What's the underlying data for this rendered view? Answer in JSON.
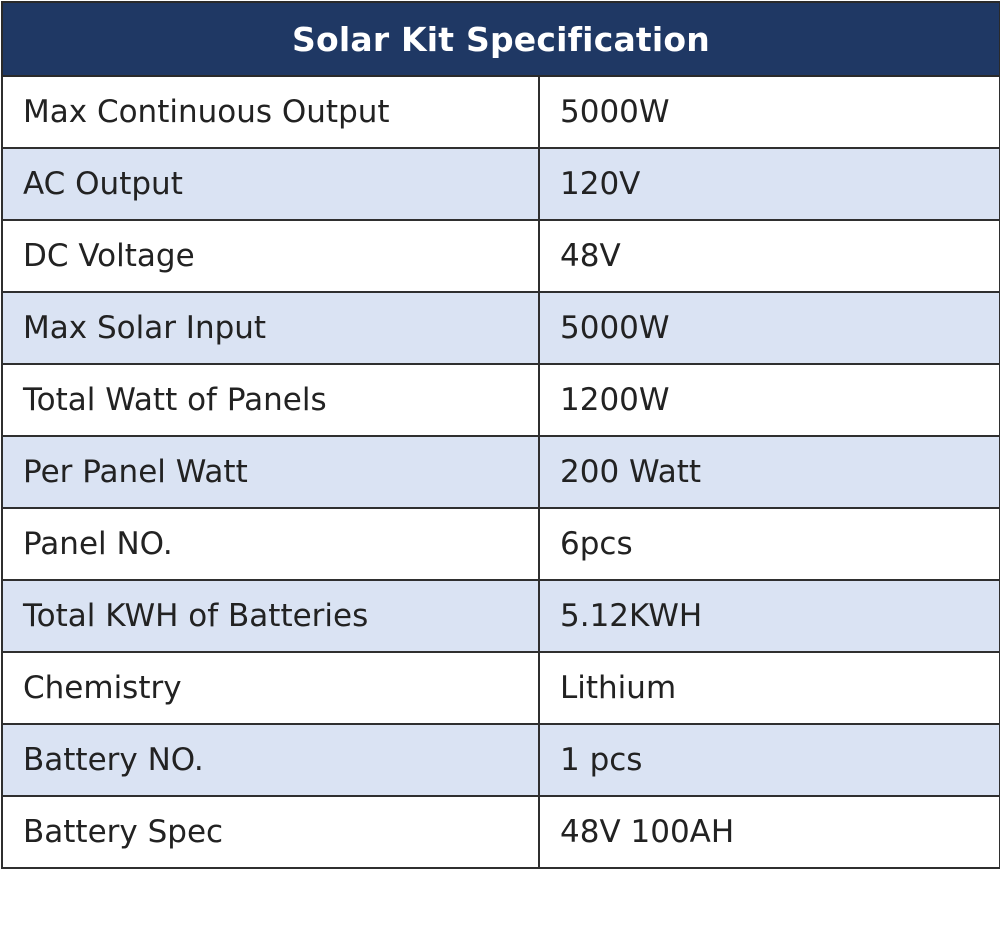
{
  "table": {
    "title": "Solar Kit Specification",
    "header_bg": "#1f3864",
    "stripe_bg": "#dae3f3",
    "rows": [
      {
        "label": "Max Continuous Output",
        "value": "5000W"
      },
      {
        "label": "AC Output",
        "value": "120V"
      },
      {
        "label": "DC Voltage",
        "value": "48V"
      },
      {
        "label": "Max Solar Input",
        "value": "5000W"
      },
      {
        "label": "Total Watt of Panels",
        "value": "1200W"
      },
      {
        "label": "Per Panel Watt",
        "value": "200 Watt"
      },
      {
        "label": "Panel NO.",
        "value": "6pcs"
      },
      {
        "label": "Total KWH of Batteries",
        "value": "5.12KWH"
      },
      {
        "label": "Chemistry",
        "value": "Lithium"
      },
      {
        "label": "Battery NO.",
        "value": "1 pcs"
      },
      {
        "label": "Battery Spec",
        "value": "48V 100AH"
      }
    ]
  }
}
